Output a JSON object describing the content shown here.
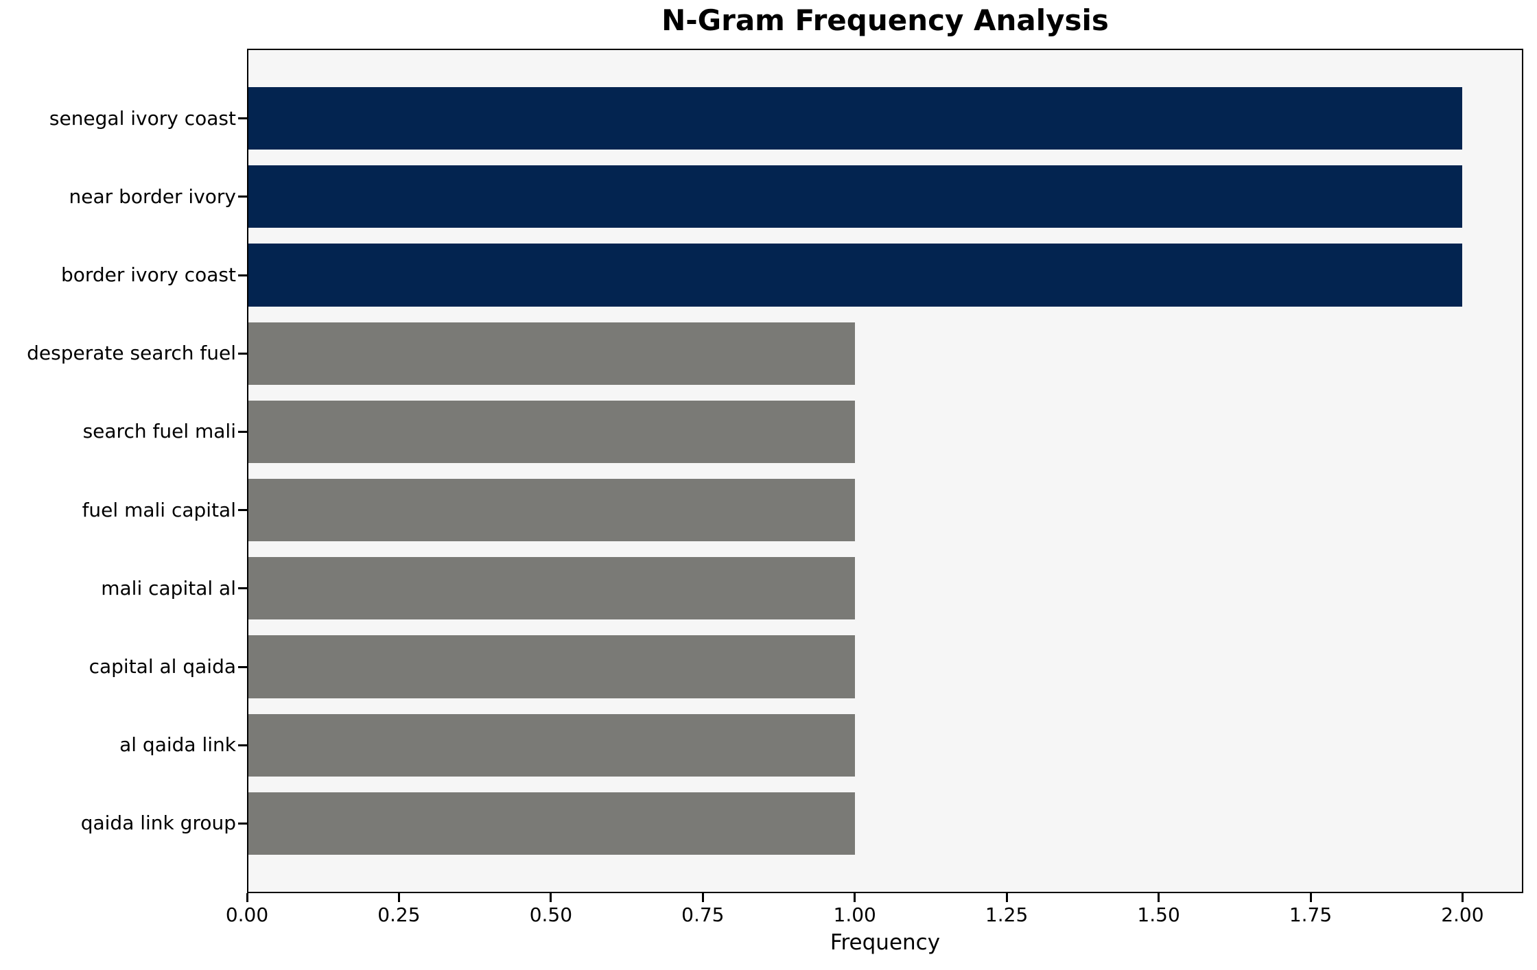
{
  "chart_data": {
    "type": "bar",
    "orientation": "horizontal",
    "title": "N-Gram Frequency Analysis",
    "xlabel": "Frequency",
    "ylabel": "",
    "categories": [
      "senegal ivory coast",
      "near border ivory",
      "border ivory coast",
      "desperate search fuel",
      "search fuel mali",
      "fuel mali capital",
      "mali capital al",
      "capital al qaida",
      "al qaida link",
      "qaida link group"
    ],
    "values": [
      2,
      2,
      2,
      1,
      1,
      1,
      1,
      1,
      1,
      1
    ],
    "bar_colors": [
      "#032450",
      "#032450",
      "#032450",
      "#7a7a76",
      "#7a7a76",
      "#7a7a76",
      "#7a7a76",
      "#7a7a76",
      "#7a7a76",
      "#7a7a76"
    ],
    "xlim": [
      0,
      2.1
    ],
    "x_ticks": [
      0,
      0.25,
      0.5,
      0.75,
      1.0,
      1.25,
      1.5,
      1.75,
      2.0
    ],
    "x_tick_labels": [
      "0.00",
      "0.25",
      "0.50",
      "0.75",
      "1.00",
      "1.25",
      "1.50",
      "1.75",
      "2.00"
    ],
    "colors": {
      "highlight_bar": "#032450",
      "default_bar": "#7a7a76",
      "plot_background": "#f6f6f6",
      "figure_background": "#ffffff",
      "axis": "#000000"
    },
    "grid": false,
    "legend": null
  }
}
